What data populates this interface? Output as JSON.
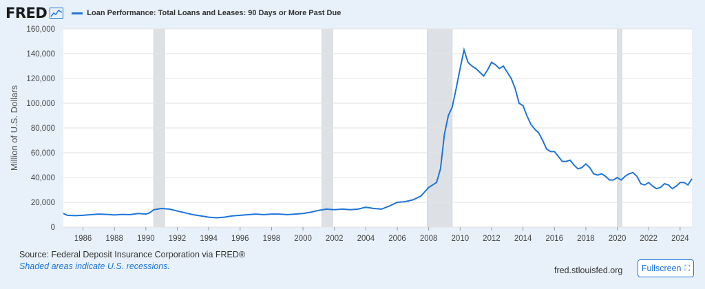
{
  "header": {
    "logo_text": "FRED",
    "legend_label": "Loan Performance: Total Loans and Leases: 90 Days or More Past Due"
  },
  "footer": {
    "source": "Source: Federal Deposit Insurance Corporation via FRED®",
    "note": "Shaded areas indicate U.S. recessions.",
    "site": "fred.stlouisfed.org",
    "fullscreen_label": "Fullscreen",
    "fullscreen_icon": "expand-icon"
  },
  "colors": {
    "line": "#1d74d8",
    "recession": "#dde1e6",
    "background": "#e8f1fa",
    "plot_bg": "#ffffff"
  },
  "chart_data": {
    "type": "line",
    "title": "",
    "xlabel": "",
    "ylabel": "Million of U.S. Dollars",
    "xlim": [
      1984.75,
      2024.75
    ],
    "ylim": [
      0,
      160000
    ],
    "y_ticks": [
      0,
      20000,
      40000,
      60000,
      80000,
      100000,
      120000,
      140000,
      160000
    ],
    "y_tick_labels": [
      "0",
      "20,000",
      "40,000",
      "60,000",
      "80,000",
      "100,000",
      "120,000",
      "140,000",
      "160,000"
    ],
    "x_ticks": [
      1986,
      1988,
      1990,
      1992,
      1994,
      1996,
      1998,
      2000,
      2002,
      2004,
      2006,
      2008,
      2010,
      2012,
      2014,
      2016,
      2018,
      2020,
      2022,
      2024
    ],
    "grid": "horizontal",
    "legend": "top-left",
    "recessions": [
      [
        1990.5,
        1991.2
      ],
      [
        2001.2,
        2001.9
      ],
      [
        2007.9,
        2009.5
      ],
      [
        2020.0,
        2020.3
      ]
    ],
    "series": [
      {
        "name": "Loan Performance: Total Loans and Leases: 90 Days or More Past Due",
        "x": [
          1984.75,
          1985.0,
          1985.5,
          1986.0,
          1986.5,
          1987.0,
          1987.5,
          1988.0,
          1988.5,
          1989.0,
          1989.5,
          1990.0,
          1990.25,
          1990.5,
          1990.75,
          1991.0,
          1991.5,
          1992.0,
          1992.5,
          1993.0,
          1993.5,
          1994.0,
          1994.5,
          1995.0,
          1995.5,
          1996.0,
          1996.5,
          1997.0,
          1997.5,
          1998.0,
          1998.5,
          1999.0,
          1999.5,
          2000.0,
          2000.5,
          2001.0,
          2001.5,
          2002.0,
          2002.5,
          2003.0,
          2003.5,
          2004.0,
          2004.5,
          2005.0,
          2005.5,
          2006.0,
          2006.5,
          2007.0,
          2007.5,
          2008.0,
          2008.25,
          2008.5,
          2008.75,
          2009.0,
          2009.25,
          2009.5,
          2009.75,
          2010.0,
          2010.25,
          2010.5,
          2010.75,
          2011.0,
          2011.25,
          2011.5,
          2011.75,
          2012.0,
          2012.25,
          2012.5,
          2012.75,
          2013.0,
          2013.25,
          2013.5,
          2013.75,
          2014.0,
          2014.25,
          2014.5,
          2014.75,
          2015.0,
          2015.25,
          2015.5,
          2015.75,
          2016.0,
          2016.25,
          2016.5,
          2016.75,
          2017.0,
          2017.25,
          2017.5,
          2017.75,
          2018.0,
          2018.25,
          2018.5,
          2018.75,
          2019.0,
          2019.25,
          2019.5,
          2019.75,
          2020.0,
          2020.25,
          2020.5,
          2020.75,
          2021.0,
          2021.25,
          2021.5,
          2021.75,
          2022.0,
          2022.25,
          2022.5,
          2022.75,
          2023.0,
          2023.25,
          2023.5,
          2023.75,
          2024.0,
          2024.25,
          2024.5,
          2024.75
        ],
        "values": [
          11000,
          9500,
          9200,
          9500,
          10000,
          10500,
          10200,
          9800,
          10200,
          10000,
          11000,
          10500,
          11500,
          14000,
          14500,
          15000,
          14500,
          13000,
          11500,
          10000,
          9000,
          8000,
          7500,
          8000,
          9000,
          9500,
          10000,
          10500,
          10000,
          10500,
          10500,
          10000,
          10500,
          11000,
          12000,
          13500,
          14500,
          14000,
          14500,
          14000,
          14500,
          16000,
          15000,
          14500,
          17000,
          20000,
          20500,
          22000,
          25000,
          32000,
          34000,
          36000,
          47000,
          75000,
          90000,
          97000,
          112000,
          128000,
          143000,
          133000,
          130000,
          128000,
          125000,
          122000,
          127000,
          133000,
          131000,
          128000,
          130000,
          125000,
          120000,
          112000,
          100000,
          98000,
          90000,
          83000,
          79000,
          76000,
          70000,
          63000,
          61000,
          61000,
          57000,
          53000,
          53000,
          54000,
          50000,
          47000,
          48000,
          51000,
          48000,
          43000,
          42000,
          43000,
          41000,
          38000,
          38000,
          40000,
          38000,
          41000,
          43000,
          44000,
          41000,
          35000,
          34000,
          36000,
          33000,
          31000,
          32000,
          35000,
          34000,
          31000,
          33000,
          36000,
          36000,
          34000,
          39000
        ]
      }
    ]
  }
}
